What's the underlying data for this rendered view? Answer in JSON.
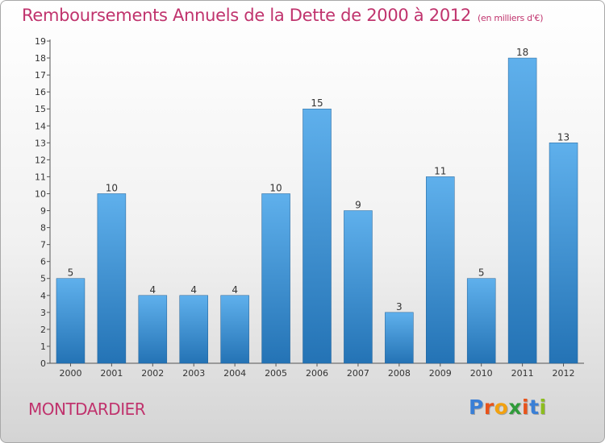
{
  "title": "Remboursements Annuels de la Dette de 2000 à 2012",
  "subtitle": "(en milliers d'€)",
  "place": "MONTDARDIER",
  "logo": {
    "letters": [
      "P",
      "r",
      "o",
      "x",
      "i",
      "t",
      "i"
    ],
    "colors": [
      "#3a7fd6",
      "#e8531a",
      "#f2a10f",
      "#2f9b3a",
      "#e8531a",
      "#3a7fd6",
      "#8dbd1f"
    ]
  },
  "colors": {
    "bar_top": "#5fb0ec",
    "bar_bottom": "#2473b5",
    "title": "#c0336d"
  },
  "chart_data": {
    "type": "bar",
    "title": "Remboursements Annuels de la Dette de 2000 à 2012",
    "subtitle": "(en milliers d'€)",
    "categories": [
      "2000",
      "2001",
      "2002",
      "2003",
      "2004",
      "2005",
      "2006",
      "2007",
      "2008",
      "2009",
      "2010",
      "2011",
      "2012"
    ],
    "values": [
      5,
      10,
      4,
      4,
      4,
      10,
      15,
      9,
      3,
      11,
      5,
      18,
      13
    ],
    "yticks": [
      0,
      1,
      2,
      3,
      4,
      5,
      6,
      7,
      8,
      9,
      10,
      11,
      12,
      13,
      14,
      15,
      16,
      17,
      18,
      19
    ],
    "ylim": [
      0,
      19
    ],
    "grid": false,
    "data_labels": true
  }
}
